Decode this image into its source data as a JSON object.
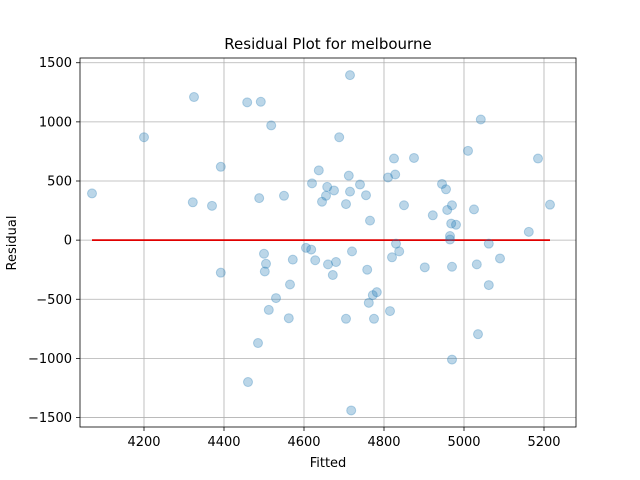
{
  "chart_data": {
    "type": "scatter",
    "title": "Residual Plot for melbourne",
    "xlabel": "Fitted",
    "ylabel": "Residual",
    "xlim": [
      4040,
      5280
    ],
    "ylim": [
      -1580,
      1540
    ],
    "xticks": [
      4200,
      4400,
      4600,
      4800,
      5000,
      5200
    ],
    "yticks": [
      -1500,
      -1000,
      -500,
      0,
      500,
      1000,
      1500
    ],
    "grid": true,
    "reference_line": {
      "y": 0,
      "x_range": [
        4070,
        5215
      ],
      "color": "#e00000"
    },
    "point_color": "#1f77b4",
    "points": [
      [
        4070,
        395
      ],
      [
        4200,
        870
      ],
      [
        4322,
        320
      ],
      [
        4325,
        1210
      ],
      [
        4370,
        290
      ],
      [
        4392,
        620
      ],
      [
        4392,
        -275
      ],
      [
        4458,
        1165
      ],
      [
        4460,
        -1200
      ],
      [
        4485,
        -870
      ],
      [
        4488,
        355
      ],
      [
        4492,
        1170
      ],
      [
        4500,
        -115
      ],
      [
        4502,
        -265
      ],
      [
        4505,
        -200
      ],
      [
        4512,
        -590
      ],
      [
        4518,
        970
      ],
      [
        4530,
        -490
      ],
      [
        4550,
        375
      ],
      [
        4562,
        -660
      ],
      [
        4565,
        -375
      ],
      [
        4572,
        -165
      ],
      [
        4605,
        -65
      ],
      [
        4618,
        -80
      ],
      [
        4620,
        480
      ],
      [
        4628,
        -170
      ],
      [
        4637,
        590
      ],
      [
        4645,
        325
      ],
      [
        4655,
        375
      ],
      [
        4658,
        450
      ],
      [
        4660,
        -205
      ],
      [
        4672,
        -295
      ],
      [
        4675,
        420
      ],
      [
        4680,
        -185
      ],
      [
        4688,
        870
      ],
      [
        4705,
        305
      ],
      [
        4705,
        -665
      ],
      [
        4712,
        545
      ],
      [
        4715,
        410
      ],
      [
        4715,
        1395
      ],
      [
        4718,
        -1440
      ],
      [
        4720,
        -95
      ],
      [
        4740,
        470
      ],
      [
        4755,
        380
      ],
      [
        4758,
        -250
      ],
      [
        4762,
        -530
      ],
      [
        4765,
        165
      ],
      [
        4772,
        -465
      ],
      [
        4775,
        -665
      ],
      [
        4782,
        -440
      ],
      [
        4810,
        530
      ],
      [
        4815,
        -600
      ],
      [
        4820,
        -145
      ],
      [
        4825,
        690
      ],
      [
        4828,
        555
      ],
      [
        4830,
        -30
      ],
      [
        4838,
        -95
      ],
      [
        4850,
        295
      ],
      [
        4875,
        695
      ],
      [
        4902,
        -230
      ],
      [
        4922,
        210
      ],
      [
        4945,
        475
      ],
      [
        4955,
        430
      ],
      [
        4958,
        255
      ],
      [
        4965,
        5
      ],
      [
        4965,
        35
      ],
      [
        4968,
        140
      ],
      [
        4970,
        295
      ],
      [
        4970,
        -1010
      ],
      [
        4970,
        -225
      ],
      [
        4980,
        130
      ],
      [
        5010,
        755
      ],
      [
        5025,
        260
      ],
      [
        5032,
        -205
      ],
      [
        5035,
        -795
      ],
      [
        5042,
        1020
      ],
      [
        5062,
        -30
      ],
      [
        5062,
        -380
      ],
      [
        5090,
        -155
      ],
      [
        5162,
        70
      ],
      [
        5185,
        690
      ],
      [
        5215,
        300
      ]
    ]
  }
}
